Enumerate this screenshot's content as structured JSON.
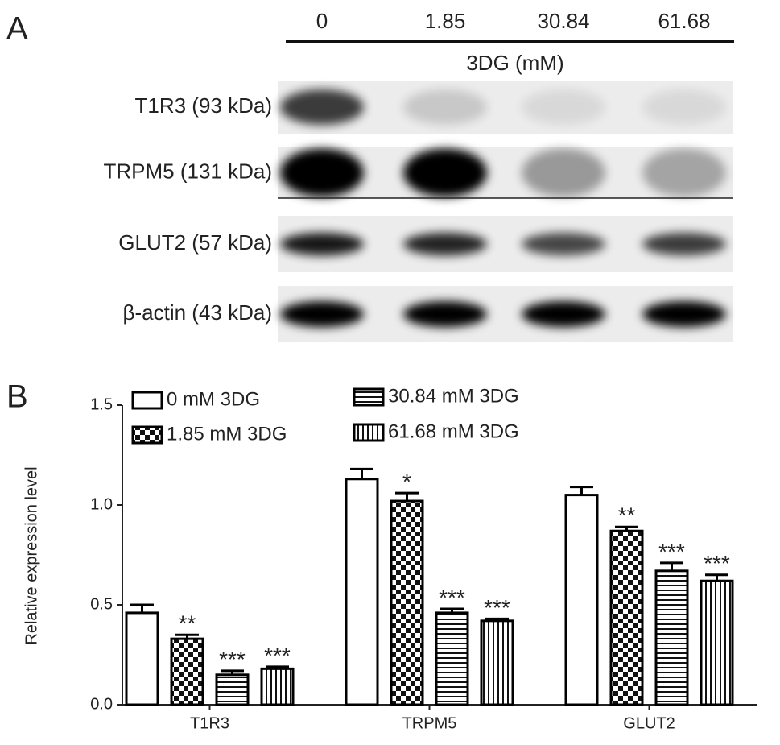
{
  "panel_a": {
    "label": "A",
    "lanes": [
      "0",
      "1.85",
      "30.84",
      "61.68"
    ],
    "treatment": "3DG (mM)",
    "rows": [
      "T1R3 (93 kDa)",
      "TRPM5 (131 kDa)",
      "GLUT2 (57 kDa)",
      "β-actin (43 kDa)"
    ]
  },
  "chart_data": {
    "panel_label": "B",
    "type": "bar",
    "y_label": "Relative expression level",
    "categories": [
      "T1R3",
      "TRPM5",
      "GLUT2"
    ],
    "series": [
      {
        "name": "0 mM 3DG",
        "color": "#000000",
        "pattern": "solid",
        "values": [
          0.46,
          1.13,
          1.05
        ],
        "errors": [
          0.04,
          0.05,
          0.04
        ],
        "annotations": [
          null,
          null,
          null
        ]
      },
      {
        "name": "1.85 mM 3DG",
        "color": "#000000",
        "pattern": "checker",
        "values": [
          0.33,
          1.02,
          0.87
        ],
        "errors": [
          0.02,
          0.04,
          0.02
        ],
        "annotations": [
          "**",
          "*",
          "**"
        ]
      },
      {
        "name": "30.84 mM 3DG",
        "color": "#000000",
        "pattern": "horizontal",
        "values": [
          0.15,
          0.46,
          0.67
        ],
        "errors": [
          0.02,
          0.02,
          0.04
        ],
        "annotations": [
          "***",
          "***",
          "***"
        ]
      },
      {
        "name": "61.68 mM 3DG",
        "color": "#000000",
        "pattern": "vertical",
        "values": [
          0.18,
          0.42,
          0.62
        ],
        "errors": [
          0.01,
          0.01,
          0.03
        ],
        "annotations": [
          "***",
          "***",
          "***"
        ]
      }
    ],
    "ylim": [
      0,
      1.5
    ],
    "yticks": [
      {
        "value": 0,
        "label": "0.0"
      },
      {
        "value": 0.5,
        "label": "0.5"
      },
      {
        "value": 1,
        "label": "1.0"
      },
      {
        "value": 1.5,
        "label": "1.5"
      }
    ],
    "legend": "upper-left"
  }
}
